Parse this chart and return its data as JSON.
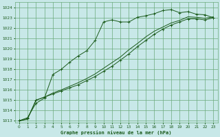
{
  "title": "Graphe pression niveau de la mer (hPa)",
  "bg_color": "#c8e8e8",
  "grid_color": "#6aaa7a",
  "line_color": "#1a5a1a",
  "xlim": [
    -0.5,
    23.5
  ],
  "ylim": [
    1012.8,
    1024.5
  ],
  "yticks": [
    1013,
    1014,
    1015,
    1016,
    1017,
    1018,
    1019,
    1020,
    1021,
    1022,
    1023,
    1024
  ],
  "xticks": [
    0,
    1,
    2,
    3,
    4,
    5,
    6,
    7,
    8,
    9,
    10,
    11,
    12,
    13,
    14,
    15,
    16,
    17,
    18,
    19,
    20,
    21,
    22,
    23
  ],
  "series1_x": [
    0,
    1,
    2,
    3,
    4,
    5,
    6,
    7,
    8,
    9,
    10,
    11,
    12,
    13,
    14,
    15,
    16,
    17,
    18,
    19,
    20,
    21,
    22,
    23
  ],
  "series1_y": [
    1013.0,
    1013.3,
    1014.7,
    1015.2,
    1017.5,
    1018.0,
    1018.7,
    1019.3,
    1019.8,
    1020.8,
    1022.6,
    1022.8,
    1022.6,
    1022.6,
    1023.05,
    1023.2,
    1023.4,
    1023.7,
    1023.8,
    1023.5,
    1023.6,
    1023.35,
    1023.3,
    1023.0
  ],
  "series2_x": [
    0,
    1,
    2,
    3,
    4,
    5,
    6,
    7,
    8,
    9,
    10,
    11,
    12,
    13,
    14,
    15,
    16,
    17,
    18,
    19,
    20,
    21,
    22,
    23
  ],
  "series2_y": [
    1013.0,
    1013.2,
    1015.0,
    1015.3,
    1015.6,
    1015.9,
    1016.2,
    1016.5,
    1016.9,
    1017.3,
    1017.8,
    1018.3,
    1018.9,
    1019.5,
    1020.2,
    1020.8,
    1021.4,
    1021.9,
    1022.3,
    1022.6,
    1022.9,
    1022.9,
    1022.8,
    1023.0
  ],
  "series3_x": [
    0,
    1,
    2,
    3,
    4,
    5,
    6,
    7,
    8,
    9,
    10,
    11,
    12,
    13,
    14,
    15,
    16,
    17,
    18,
    19,
    20,
    21,
    22,
    23
  ],
  "series3_y": [
    1013.0,
    1013.15,
    1015.0,
    1015.3,
    1015.7,
    1016.0,
    1016.35,
    1016.7,
    1017.1,
    1017.55,
    1018.1,
    1018.65,
    1019.2,
    1019.9,
    1020.5,
    1021.15,
    1021.7,
    1022.1,
    1022.5,
    1022.75,
    1023.1,
    1023.05,
    1022.95,
    1023.1
  ]
}
